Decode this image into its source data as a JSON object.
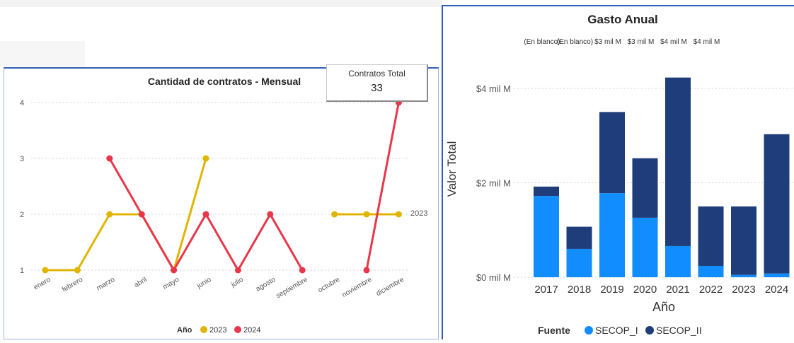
{
  "card": {
    "label": "Contratos Total",
    "value": "33"
  },
  "chart_data": [
    {
      "type": "line",
      "title": "Cantidad de contratos - Mensual",
      "categories": [
        "enero",
        "febrero",
        "marzo",
        "abril",
        "mayo",
        "junio",
        "julio",
        "agosto",
        "septiembre",
        "octubre",
        "noviembre",
        "diciembre"
      ],
      "yticks": [
        "1",
        "2",
        "3",
        "4"
      ],
      "ylim": [
        1,
        4
      ],
      "series": [
        {
          "name": "2023",
          "color": "#e1b400",
          "values": [
            1,
            1,
            2,
            2,
            1,
            3,
            null,
            null,
            null,
            2,
            2,
            2
          ]
        },
        {
          "name": "2024",
          "color": "#e8364a",
          "values": [
            null,
            null,
            3,
            2,
            1,
            2,
            1,
            2,
            1,
            null,
            1,
            4
          ]
        }
      ],
      "end_label": "2023",
      "legend": {
        "title": "Año",
        "position": "bottom"
      },
      "grid": true
    },
    {
      "type": "bar",
      "stacked": true,
      "title": "Gasto Anual",
      "categories": [
        "2017",
        "2018",
        "2019",
        "2020",
        "2021",
        "2022",
        "2023",
        "2024"
      ],
      "top_labels": [
        "(En blanco)",
        "(En blanco)",
        "$3 mil M",
        "$3 mil M",
        "$4 mil M",
        "$4 mil M"
      ],
      "xlabel": "Año",
      "ylabel": "Valor Total",
      "yticks": [
        "$0 mil M",
        "$2 mil M",
        "$4 mil M"
      ],
      "ylim": [
        0,
        4.2
      ],
      "series": [
        {
          "name": "SECOP_I",
          "color": "#118dff",
          "values": [
            1.72,
            0.6,
            1.78,
            1.26,
            0.66,
            0.24,
            0.05,
            0.08
          ]
        },
        {
          "name": "SECOP_II",
          "color": "#1f3d7a",
          "values": [
            0.2,
            0.47,
            1.72,
            1.26,
            3.57,
            1.26,
            1.45,
            2.95
          ]
        }
      ],
      "legend": {
        "title": "Fuente",
        "position": "bottom"
      },
      "grid": true
    }
  ]
}
